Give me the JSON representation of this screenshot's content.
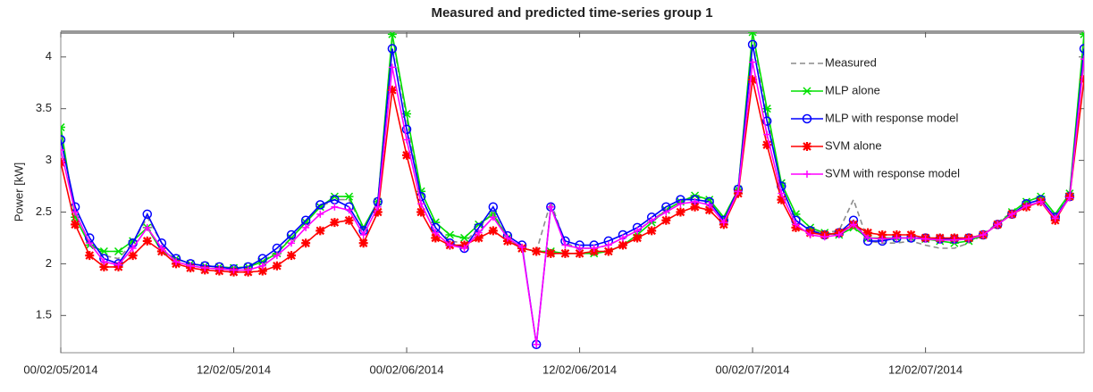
{
  "chart_data": {
    "type": "line",
    "title": "Measured and predicted time-series group 1",
    "ylabel": "Power  [kW]",
    "categories": [
      "00/02/05/2014",
      null,
      null,
      null,
      null,
      null,
      null,
      null,
      null,
      null,
      null,
      null,
      "12/02/05/2014",
      null,
      null,
      null,
      null,
      null,
      null,
      null,
      null,
      null,
      null,
      null,
      "00/02/06/2014",
      null,
      null,
      null,
      null,
      null,
      null,
      null,
      null,
      null,
      null,
      null,
      "12/02/06/2014",
      null,
      null,
      null,
      null,
      null,
      null,
      null,
      null,
      null,
      null,
      null,
      "00/02/07/2014",
      null,
      null,
      null,
      null,
      null,
      null,
      null,
      null,
      null,
      null,
      null,
      "12/02/07/2014",
      null,
      null,
      null,
      null,
      null,
      null,
      null,
      null,
      null,
      null,
      null
    ],
    "ylim": [
      1.14,
      4.24
    ],
    "yticks": [
      1.5,
      2,
      2.5,
      3,
      3.5,
      4
    ],
    "legend": "upper right",
    "series": [
      {
        "name": "Measured",
        "color": "#8c8c8c",
        "marker": "none",
        "dash": true,
        "values": [
          3.25,
          2.5,
          2.2,
          2.08,
          2.05,
          2.2,
          2.45,
          2.2,
          2.05,
          2.0,
          1.98,
          1.97,
          1.96,
          1.97,
          2.02,
          2.12,
          2.25,
          2.4,
          2.55,
          2.62,
          2.62,
          2.35,
          2.6,
          4.2,
          3.4,
          2.65,
          2.35,
          2.22,
          2.2,
          2.35,
          2.5,
          2.25,
          2.15,
          2.12,
          2.6,
          2.2,
          2.15,
          2.15,
          2.18,
          2.25,
          2.32,
          2.42,
          2.52,
          2.6,
          2.65,
          2.62,
          2.45,
          2.72,
          4.22,
          3.45,
          2.75,
          2.42,
          2.32,
          2.3,
          2.32,
          2.62,
          2.22,
          2.2,
          2.2,
          2.22,
          2.18,
          2.15,
          2.15,
          2.2,
          2.28,
          2.4,
          2.5,
          2.6,
          2.65,
          2.48,
          2.66,
          4.2
        ]
      },
      {
        "name": "MLP alone",
        "color": "#00e000",
        "marker": "x",
        "values": [
          3.32,
          2.45,
          2.18,
          2.12,
          2.12,
          2.22,
          2.35,
          2.12,
          2.05,
          2.0,
          1.98,
          1.97,
          1.96,
          1.97,
          2.02,
          2.1,
          2.25,
          2.4,
          2.55,
          2.65,
          2.65,
          2.35,
          2.6,
          4.22,
          3.45,
          2.7,
          2.4,
          2.28,
          2.25,
          2.38,
          2.48,
          2.25,
          2.15,
          2.12,
          2.12,
          2.1,
          2.1,
          2.1,
          2.12,
          2.18,
          2.28,
          2.4,
          2.52,
          2.6,
          2.66,
          2.62,
          2.45,
          2.72,
          4.24,
          3.5,
          2.78,
          2.48,
          2.35,
          2.3,
          2.28,
          2.35,
          2.25,
          2.25,
          2.25,
          2.25,
          2.24,
          2.22,
          2.2,
          2.22,
          2.28,
          2.38,
          2.5,
          2.6,
          2.65,
          2.48,
          2.68,
          4.22
        ]
      },
      {
        "name": "MLP with response model",
        "color": "#0000ff",
        "marker": "circle",
        "values": [
          3.2,
          2.55,
          2.25,
          2.05,
          2.0,
          2.2,
          2.48,
          2.2,
          2.05,
          2.0,
          1.98,
          1.97,
          1.95,
          1.97,
          2.05,
          2.15,
          2.28,
          2.42,
          2.57,
          2.62,
          2.55,
          2.32,
          2.6,
          4.08,
          3.3,
          2.65,
          2.35,
          2.2,
          2.15,
          2.35,
          2.55,
          2.27,
          2.18,
          1.22,
          2.55,
          2.22,
          2.18,
          2.18,
          2.22,
          2.28,
          2.35,
          2.45,
          2.55,
          2.62,
          2.62,
          2.6,
          2.42,
          2.72,
          4.12,
          3.38,
          2.75,
          2.42,
          2.32,
          2.28,
          2.3,
          2.42,
          2.22,
          2.22,
          2.25,
          2.25,
          2.25,
          2.24,
          2.24,
          2.25,
          2.28,
          2.38,
          2.48,
          2.58,
          2.62,
          2.45,
          2.65,
          4.08
        ]
      },
      {
        "name": "SVM alone",
        "color": "#ff0000",
        "marker": "star",
        "values": [
          2.98,
          2.38,
          2.08,
          1.97,
          1.97,
          2.08,
          2.22,
          2.12,
          2.0,
          1.96,
          1.94,
          1.93,
          1.92,
          1.92,
          1.93,
          1.98,
          2.08,
          2.2,
          2.32,
          2.4,
          2.42,
          2.2,
          2.5,
          3.68,
          3.05,
          2.5,
          2.25,
          2.18,
          2.18,
          2.25,
          2.32,
          2.22,
          2.15,
          2.12,
          2.1,
          2.1,
          2.1,
          2.12,
          2.12,
          2.18,
          2.25,
          2.32,
          2.42,
          2.5,
          2.55,
          2.52,
          2.38,
          2.68,
          3.78,
          3.15,
          2.62,
          2.35,
          2.3,
          2.28,
          2.3,
          2.38,
          2.3,
          2.28,
          2.28,
          2.28,
          2.25,
          2.25,
          2.25,
          2.25,
          2.28,
          2.38,
          2.48,
          2.55,
          2.6,
          2.42,
          2.65,
          3.78
        ]
      },
      {
        "name": "SVM with response model",
        "color": "#ff00ff",
        "marker": "plus",
        "values": [
          3.1,
          2.5,
          2.2,
          2.02,
          1.99,
          2.15,
          2.35,
          2.15,
          2.02,
          1.98,
          1.96,
          1.95,
          1.94,
          1.94,
          1.98,
          2.08,
          2.2,
          2.35,
          2.48,
          2.55,
          2.52,
          2.28,
          2.55,
          3.9,
          3.2,
          2.58,
          2.3,
          2.18,
          2.15,
          2.3,
          2.45,
          2.25,
          2.16,
          1.22,
          2.55,
          2.18,
          2.15,
          2.15,
          2.18,
          2.25,
          2.32,
          2.42,
          2.5,
          2.58,
          2.6,
          2.57,
          2.4,
          2.7,
          3.95,
          3.25,
          2.68,
          2.38,
          2.28,
          2.26,
          2.28,
          2.38,
          2.25,
          2.24,
          2.25,
          2.25,
          2.24,
          2.23,
          2.23,
          2.24,
          2.28,
          2.38,
          2.48,
          2.56,
          2.6,
          2.44,
          2.64,
          3.98
        ]
      }
    ]
  }
}
